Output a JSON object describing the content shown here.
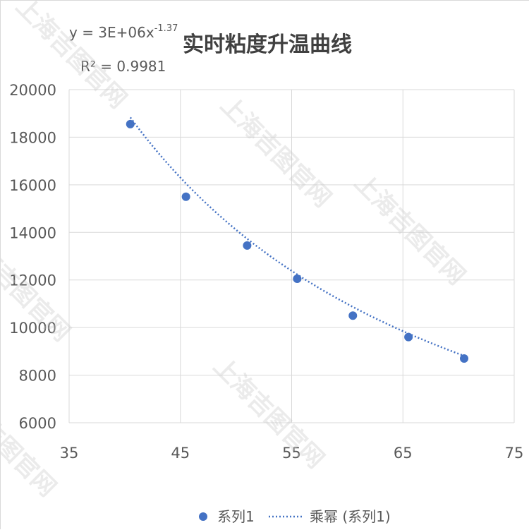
{
  "chart_data": {
    "type": "scatter",
    "title": "实时粘度升温曲线",
    "trendline_equation": "y = 3E+06x",
    "trendline_exponent": "-1.37",
    "r_squared": "R² = 0.9981",
    "xlim": [
      35,
      75
    ],
    "ylim": [
      6000,
      20000
    ],
    "x_ticks": [
      35,
      45,
      55,
      65,
      75
    ],
    "y_ticks": [
      6000,
      8000,
      10000,
      12000,
      14000,
      16000,
      18000,
      20000
    ],
    "grid": true,
    "legend_position": "bottom",
    "series": [
      {
        "name": "系列1",
        "marker_color": "#4472c4",
        "points": [
          {
            "x": 40.5,
            "y": 18550
          },
          {
            "x": 45.5,
            "y": 15500
          },
          {
            "x": 51,
            "y": 13450
          },
          {
            "x": 55.5,
            "y": 12050
          },
          {
            "x": 60.5,
            "y": 10500
          },
          {
            "x": 65.5,
            "y": 9600
          },
          {
            "x": 70.5,
            "y": 8700
          }
        ]
      }
    ],
    "trendline": {
      "name": "乘幂 (系列1)",
      "type": "power",
      "coefficient": 3000000,
      "exponent": -1.37,
      "color": "#4472c4"
    },
    "legend": [
      "系列1",
      "乘幂 (系列1)"
    ]
  },
  "watermark": "上海吉图官网"
}
